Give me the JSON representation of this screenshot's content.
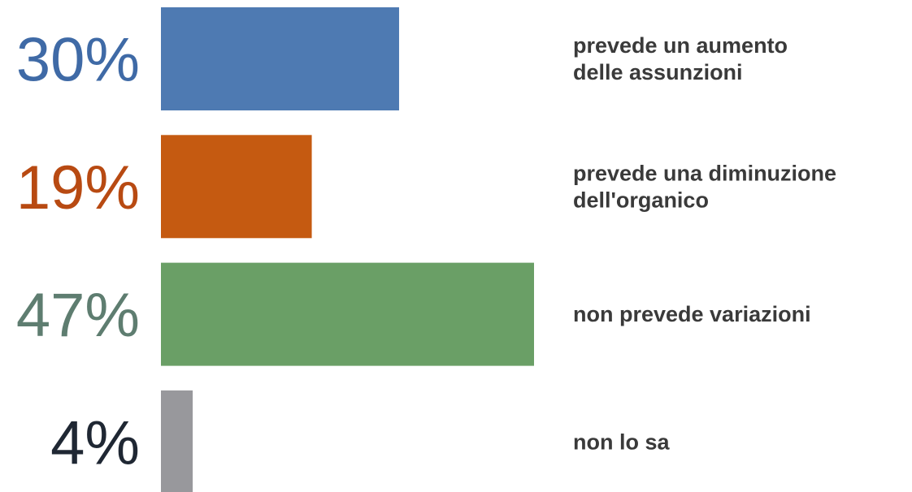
{
  "chart_data": {
    "type": "bar",
    "orientation": "horizontal",
    "categories": [
      [
        "prevede un aumento",
        "delle assunzioni"
      ],
      [
        "prevede una diminuzione",
        "dell'organico"
      ],
      [
        "non prevede variazioni"
      ],
      [
        "non lo sa"
      ]
    ],
    "values": [
      30,
      19,
      47,
      4
    ],
    "value_labels": [
      "30%",
      "19%",
      "47%",
      "4%"
    ],
    "bar_colors": [
      "#4e7ab2",
      "#c55a11",
      "#6a9f66",
      "#98989c"
    ],
    "label_colors": [
      "#3f6aa6",
      "#b84a12",
      "#5e7d70",
      "#1f2733"
    ],
    "xlim": [
      0,
      47
    ],
    "grid": false,
    "legend": "none"
  }
}
